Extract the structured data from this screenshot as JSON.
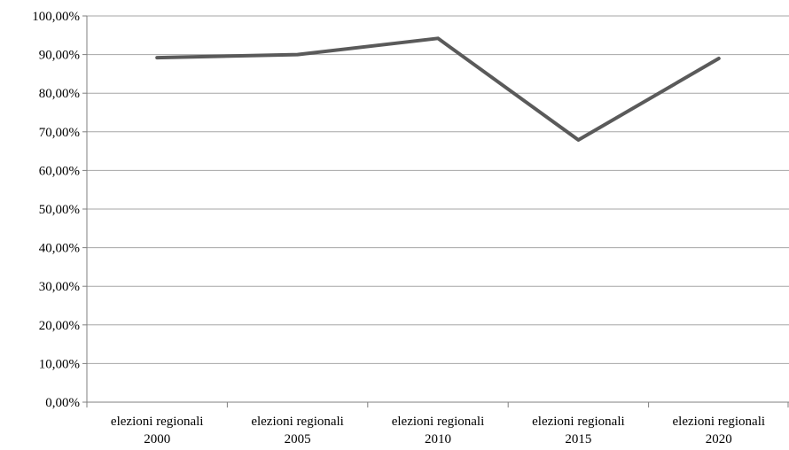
{
  "chart_data": {
    "type": "line",
    "title": "",
    "xlabel": "",
    "ylabel": "",
    "categories": [
      [
        "elezioni regionali",
        "2000"
      ],
      [
        "elezioni regionali",
        "2005"
      ],
      [
        "elezioni regionali",
        "2010"
      ],
      [
        "elezioni regionali",
        "2015"
      ],
      [
        "elezioni regionali",
        "2020"
      ]
    ],
    "series": [
      {
        "values": [
          89.2,
          90.0,
          94.2,
          67.9,
          89.0
        ]
      }
    ],
    "ylim": [
      0,
      100
    ],
    "y_ticks": [
      "0,00%",
      "10,00%",
      "20,00%",
      "30,00%",
      "40,00%",
      "50,00%",
      "60,00%",
      "70,00%",
      "80,00%",
      "90,00%",
      "100,00%"
    ],
    "grid": true,
    "legend": "none",
    "colors": {
      "line": "#5a5a5a",
      "grid": "#a6a6a6",
      "axis": "#7f7f7f"
    }
  }
}
